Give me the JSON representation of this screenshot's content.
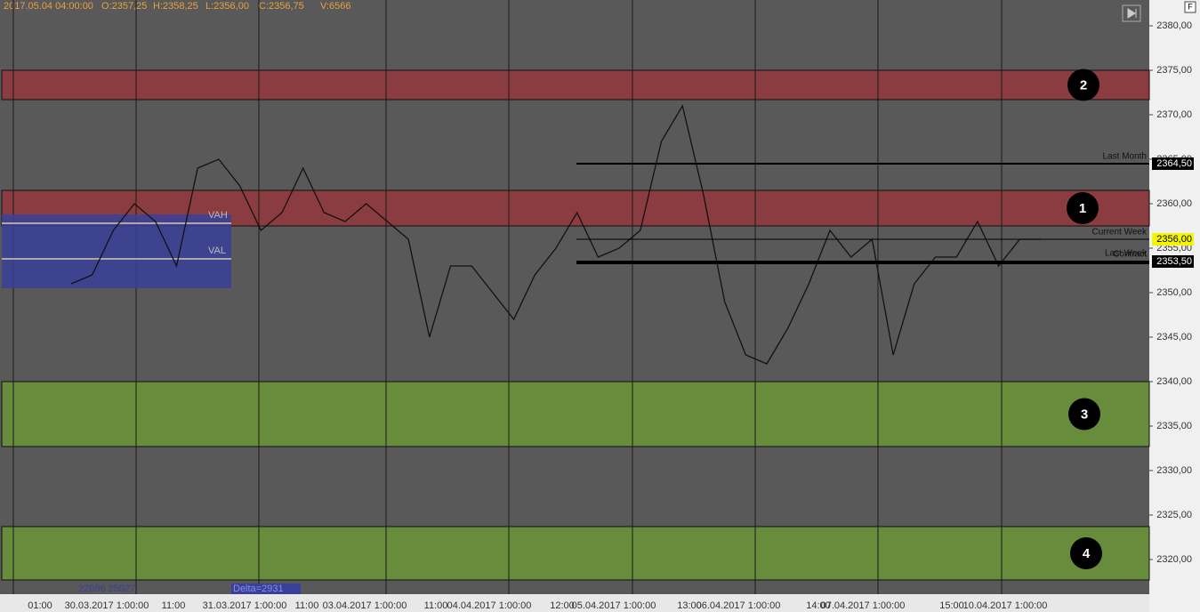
{
  "chart_data": {
    "type": "line",
    "header": {
      "time": "2017.05.04 04:00:00",
      "open": "O:2357,25",
      "high": "H:2358,25",
      "low": "L:2356,00",
      "close": "C:2356,75",
      "volume": "V:6566"
    },
    "ylim": [
      2316.1,
      2382.9
    ],
    "yticks": [
      {
        "value": 2380,
        "label": "2380,00"
      },
      {
        "value": 2375,
        "label": "2375,00"
      },
      {
        "value": 2370,
        "label": "2370,00"
      },
      {
        "value": 2365,
        "label": "2365,00"
      },
      {
        "value": 2360,
        "label": "2360,00"
      },
      {
        "value": 2355,
        "label": "2355,00"
      },
      {
        "value": 2350,
        "label": "2350,00"
      },
      {
        "value": 2345,
        "label": "2345,00"
      },
      {
        "value": 2340,
        "label": "2340,00"
      },
      {
        "value": 2335,
        "label": "2335,00"
      },
      {
        "value": 2330,
        "label": "2330,00"
      },
      {
        "value": 2325,
        "label": "2325,00"
      },
      {
        "value": 2320,
        "label": "2320,00"
      }
    ],
    "xlabels": [
      "01:00",
      "30.03.2017 1:00:00",
      "11:00",
      "31.03.2017 1:00:00",
      "11:00",
      "03.04.2017 1:00:00",
      "11:00",
      "04.04.2017 1:00:00",
      "12:00",
      "05.04.2017 1:00:00",
      "13:00",
      "06.04.2017 1:00:00",
      "14:00",
      "07.04.2017 1:00:00",
      "15:00",
      "10.04.2017 1:00:00"
    ],
    "zones": [
      {
        "label": "2",
        "from": 2371.7,
        "to": 2375,
        "color": "#8b3c40"
      },
      {
        "label": "1",
        "from": 2357.5,
        "to": 2361.5,
        "color": "#8b3c40"
      },
      {
        "label": "3",
        "from": 2332.7,
        "to": 2340,
        "color": "#668c3c"
      },
      {
        "label": "4",
        "from": 2317.7,
        "to": 2323.7,
        "color": "#668c3c"
      }
    ],
    "levels": [
      {
        "name": "Last Month",
        "value": 2364.5,
        "value_label": "2364,50"
      },
      {
        "name": "Current Week",
        "value": 2356,
        "value_label": "2356,00"
      },
      {
        "name": "Contract",
        "value": 2353.5,
        "value_label": "2353,50"
      },
      {
        "name": "Last Week",
        "value": 2353.3
      }
    ],
    "profile": {
      "vah_label": "VAH",
      "vah": 2357.8,
      "val_label": "VAL",
      "val": 2353.8,
      "volume_text": "22096 25027",
      "delta_text": "Delta=2931"
    },
    "color": "#111111",
    "values": [
      2351,
      2352,
      2357,
      2360,
      2358,
      2353,
      2364,
      2365,
      2362,
      2357,
      2359,
      2364,
      2359,
      2358,
      2360,
      2358,
      2356,
      2345,
      2353,
      2353,
      2350,
      2347,
      2352,
      2355,
      2359,
      2354,
      2355,
      2357,
      2367,
      2371,
      2361,
      2349,
      2343,
      2342,
      2346,
      2351,
      2357,
      2354,
      2356,
      2343,
      2351,
      2354,
      2354,
      2358,
      2353,
      2356,
      2356
    ]
  }
}
